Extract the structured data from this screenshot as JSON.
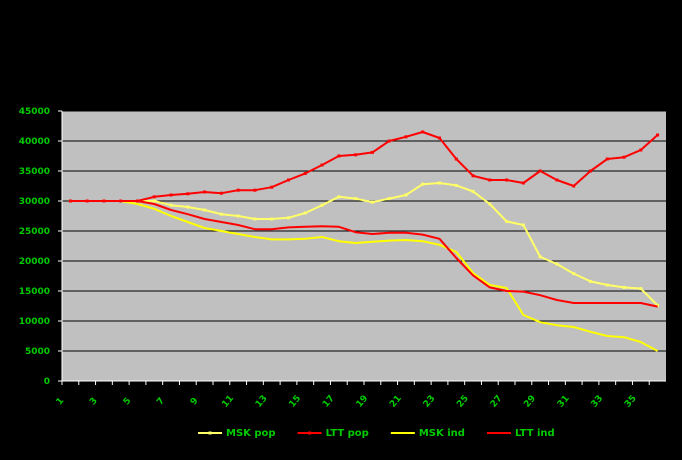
{
  "chart_data": {
    "type": "line",
    "title": "",
    "xlabel": "",
    "ylabel": "",
    "x": [
      1,
      2,
      3,
      4,
      5,
      6,
      7,
      8,
      9,
      10,
      11,
      12,
      13,
      14,
      15,
      16,
      17,
      18,
      19,
      20,
      21,
      22,
      23,
      24,
      25,
      26,
      27,
      28,
      29,
      30,
      31,
      32,
      33,
      34,
      35,
      36
    ],
    "x_tick_labels": [
      "1",
      "3",
      "5",
      "7",
      "9",
      "11",
      "13",
      "15",
      "17",
      "19",
      "21",
      "23",
      "25",
      "27",
      "29",
      "31",
      "33",
      "35"
    ],
    "ylim": [
      0,
      45000
    ],
    "y_ticks": [
      0,
      5000,
      10000,
      15000,
      20000,
      25000,
      30000,
      35000,
      40000,
      45000
    ],
    "y_tick_labels": [
      "0",
      "5000",
      "10000",
      "15000",
      "20000",
      "25000",
      "30000",
      "35000",
      "40000",
      "45000"
    ],
    "grid": true,
    "legend_position": "bottom",
    "colors": {
      "background": "#000000",
      "plot_area": "#c0c0c0",
      "axis_text": "#00cc00",
      "grid": "#000000",
      "msk": "#ffff66",
      "ltt": "#ff0000",
      "msk_ind": "#ffff00"
    },
    "series": [
      {
        "name": "MSK pop",
        "color": "#ffff66",
        "marker": true,
        "values": [
          30000,
          30000,
          30000,
          30000,
          30000,
          30000,
          29300,
          29000,
          28500,
          27800,
          27500,
          27000,
          27000,
          27200,
          28000,
          29300,
          30700,
          30400,
          29800,
          30400,
          31000,
          32800,
          33000,
          32600,
          31600,
          29500,
          26600,
          26000,
          20700,
          19500,
          17900,
          16600,
          16000,
          15600,
          15400,
          12600
        ]
      },
      {
        "name": "LTT pop",
        "color": "#ff0000",
        "marker": true,
        "values": [
          30000,
          30000,
          30000,
          30000,
          30000,
          30700,
          31000,
          31200,
          31500,
          31300,
          31800,
          31800,
          32300,
          33500,
          34600,
          36000,
          37500,
          37700,
          38100,
          40000,
          40700,
          41500,
          40500,
          37000,
          34200,
          33500,
          33500,
          33000,
          35000,
          33500,
          32500,
          35000,
          37000,
          37300,
          38500,
          41000
        ]
      },
      {
        "name": "MSK ind",
        "color": "#ffff00",
        "marker": false,
        "values": [
          30000,
          30000,
          30000,
          30000,
          29500,
          28700,
          27500,
          26500,
          25500,
          25000,
          24500,
          24000,
          23600,
          23600,
          23700,
          24000,
          23300,
          23000,
          23200,
          23400,
          23500,
          23300,
          22700,
          21500,
          18000,
          16000,
          15500,
          11000,
          9800,
          9300,
          9000,
          8200,
          7500,
          7300,
          6500,
          5000
        ]
      },
      {
        "name": "LTT ind",
        "color": "#ff0000",
        "marker": false,
        "values": [
          30000,
          30000,
          30000,
          30000,
          30000,
          29500,
          28500,
          27800,
          27000,
          26500,
          26000,
          25300,
          25300,
          25600,
          25700,
          25800,
          25700,
          24800,
          24500,
          24700,
          24700,
          24400,
          23700,
          20500,
          17600,
          15600,
          15000,
          14900,
          14300,
          13500,
          13000,
          13000,
          13000,
          13000,
          13000,
          12400
        ]
      }
    ]
  }
}
